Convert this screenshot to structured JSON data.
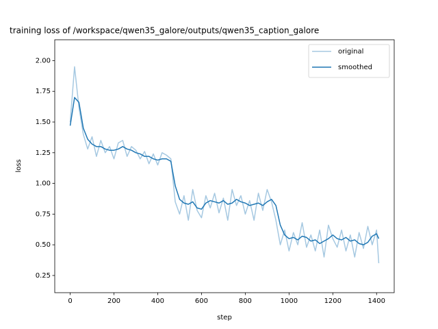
{
  "chart_data": {
    "type": "line",
    "title": "training loss of /workspace/qwen35_galore/outputs/qwen35_caption_galore",
    "xlabel": "step",
    "ylabel": "loss",
    "x": [
      0,
      20,
      40,
      60,
      80,
      100,
      120,
      140,
      160,
      180,
      200,
      220,
      240,
      260,
      280,
      300,
      320,
      340,
      360,
      380,
      400,
      420,
      440,
      460,
      480,
      500,
      520,
      540,
      560,
      580,
      600,
      620,
      640,
      660,
      680,
      700,
      720,
      740,
      760,
      780,
      800,
      820,
      840,
      860,
      880,
      900,
      920,
      940,
      960,
      980,
      1000,
      1020,
      1040,
      1060,
      1080,
      1100,
      1120,
      1140,
      1160,
      1180,
      1200,
      1220,
      1240,
      1260,
      1280,
      1300,
      1320,
      1340,
      1360,
      1380,
      1400,
      1410
    ],
    "series": [
      {
        "name": "original",
        "color": "#a5c8e1",
        "values": [
          1.5,
          1.95,
          1.62,
          1.4,
          1.28,
          1.38,
          1.22,
          1.35,
          1.25,
          1.3,
          1.2,
          1.33,
          1.35,
          1.22,
          1.3,
          1.27,
          1.2,
          1.26,
          1.16,
          1.24,
          1.15,
          1.25,
          1.23,
          1.2,
          0.85,
          0.75,
          0.9,
          0.7,
          0.95,
          0.78,
          0.72,
          0.9,
          0.8,
          0.92,
          0.76,
          0.88,
          0.7,
          0.95,
          0.82,
          0.9,
          0.75,
          0.86,
          0.7,
          0.92,
          0.78,
          0.95,
          0.85,
          0.7,
          0.5,
          0.62,
          0.45,
          0.6,
          0.5,
          0.68,
          0.48,
          0.58,
          0.45,
          0.62,
          0.4,
          0.66,
          0.55,
          0.48,
          0.62,
          0.45,
          0.58,
          0.4,
          0.6,
          0.47,
          0.65,
          0.5,
          0.62,
          0.35
        ]
      },
      {
        "name": "smoothed",
        "color": "#1f77b4",
        "values": [
          1.47,
          1.7,
          1.66,
          1.45,
          1.36,
          1.32,
          1.3,
          1.3,
          1.28,
          1.27,
          1.27,
          1.28,
          1.3,
          1.28,
          1.27,
          1.25,
          1.24,
          1.22,
          1.22,
          1.2,
          1.19,
          1.2,
          1.2,
          1.18,
          0.98,
          0.87,
          0.84,
          0.83,
          0.85,
          0.8,
          0.79,
          0.84,
          0.86,
          0.85,
          0.84,
          0.86,
          0.83,
          0.84,
          0.87,
          0.85,
          0.84,
          0.82,
          0.83,
          0.84,
          0.82,
          0.85,
          0.87,
          0.82,
          0.66,
          0.58,
          0.55,
          0.56,
          0.54,
          0.57,
          0.56,
          0.53,
          0.54,
          0.51,
          0.53,
          0.55,
          0.58,
          0.55,
          0.54,
          0.56,
          0.53,
          0.54,
          0.51,
          0.5,
          0.52,
          0.57,
          0.59,
          0.55
        ]
      }
    ],
    "xlim": [
      -70.5,
      1480.5
    ],
    "ylim": [
      0.11,
      2.17
    ],
    "xticks": [
      0,
      200,
      400,
      600,
      800,
      1000,
      1200,
      1400
    ],
    "yticks": [
      0.25,
      {
        "value": 0.5,
        "label": "0.50"
      },
      0.75,
      {
        "value": 1.0,
        "label": "1.00"
      },
      1.25,
      {
        "value": 1.5,
        "label": "1.50"
      },
      1.75,
      {
        "value": 2.0,
        "label": "2.00"
      }
    ],
    "legend": "upper right"
  }
}
